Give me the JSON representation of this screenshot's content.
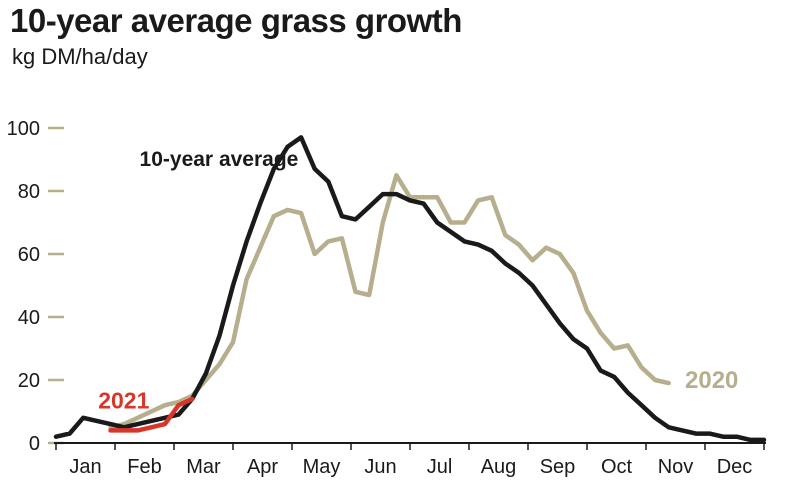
{
  "header": {
    "title": "10-year average grass growth",
    "subtitle": "kg DM/ha/day"
  },
  "chart_data": {
    "type": "line",
    "title": "10-year average grass growth",
    "subtitle": "kg DM/ha/day",
    "xlabel": "",
    "ylabel": "",
    "ylim": [
      0,
      100
    ],
    "yticks": [
      "0",
      "20",
      "40",
      "60",
      "80",
      "100"
    ],
    "ytick_values": [
      0,
      20,
      40,
      60,
      80,
      100
    ],
    "months": [
      "Jan",
      "Feb",
      "Mar",
      "Apr",
      "May",
      "Jun",
      "Jul",
      "Aug",
      "Sep",
      "Oct",
      "Nov",
      "Dec"
    ],
    "xlim": [
      0,
      52
    ],
    "x_unit": "week of year",
    "grid": false,
    "series": [
      {
        "name": "10-year average",
        "color": "#1a1a1a",
        "x": [
          0,
          1,
          2,
          3,
          4,
          5,
          6,
          7,
          8,
          9,
          10,
          11,
          12,
          13,
          14,
          15,
          16,
          17,
          18,
          19,
          20,
          21,
          22,
          23,
          24,
          25,
          26,
          27,
          28,
          29,
          30,
          31,
          32,
          33,
          34,
          35,
          36,
          37,
          38,
          39,
          40,
          41,
          42,
          43,
          44,
          45,
          46,
          47,
          48,
          49,
          50,
          51,
          52
        ],
        "values": [
          2,
          3,
          8,
          7,
          6,
          5,
          6,
          7,
          8,
          9,
          14,
          22,
          34,
          50,
          64,
          76,
          87,
          94,
          97,
          87,
          83,
          72,
          71,
          75,
          79,
          79,
          77,
          76,
          70,
          67,
          64,
          63,
          61,
          57,
          54,
          50,
          44,
          38,
          33,
          30,
          23,
          21,
          16,
          12,
          8,
          5,
          4,
          3,
          3,
          2,
          2,
          1,
          1
        ]
      },
      {
        "name": "2020",
        "color": "#b6ae8c",
        "x": [
          4,
          5,
          6,
          7,
          8,
          9,
          10,
          11,
          12,
          13,
          14,
          15,
          16,
          17,
          18,
          19,
          20,
          21,
          22,
          23,
          24,
          25,
          26,
          27,
          28,
          29,
          30,
          31,
          32,
          33,
          34,
          35,
          36,
          37,
          38,
          39,
          40,
          41,
          42,
          43,
          44,
          45
        ],
        "values": [
          5,
          6,
          8,
          10,
          12,
          13,
          15,
          20,
          25,
          32,
          52,
          62,
          72,
          74,
          73,
          60,
          64,
          65,
          48,
          47,
          70,
          85,
          78,
          78,
          78,
          70,
          70,
          77,
          78,
          66,
          63,
          58,
          62,
          60,
          54,
          42,
          35,
          30,
          31,
          24,
          20,
          19
        ]
      },
      {
        "name": "2021",
        "color": "#d8362a",
        "x": [
          4,
          5,
          6,
          7,
          8,
          9,
          10
        ],
        "values": [
          4,
          4,
          4,
          5,
          6,
          12,
          14
        ]
      }
    ],
    "annotations": [
      {
        "text": "10-year average",
        "series": "10-year average"
      },
      {
        "text": "2020",
        "series": "2020"
      },
      {
        "text": "2021",
        "series": "2021"
      }
    ]
  }
}
